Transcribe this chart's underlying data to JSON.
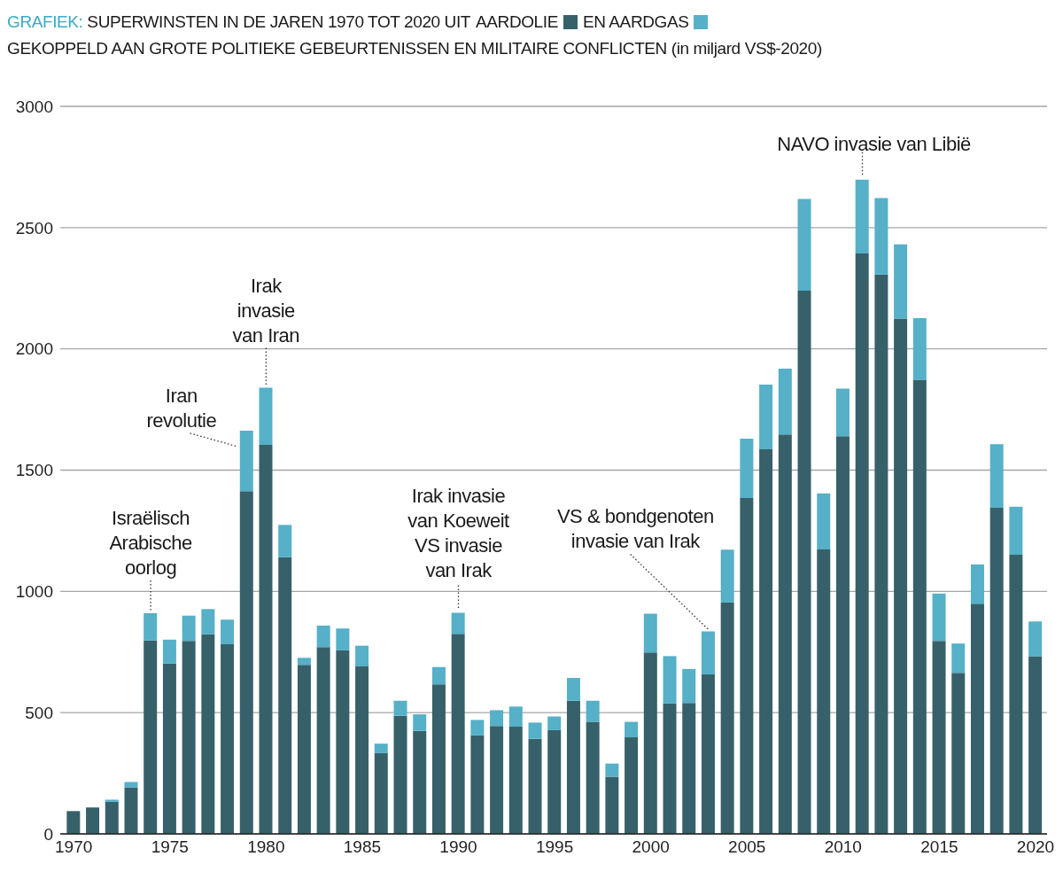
{
  "chart_data": {
    "type": "bar",
    "title": "GRAFIEK: SUPERWINSTEN IN DE JAREN 1970 TOT 2020 UIT",
    "subtitle": "GEKOPPELD AAN GROTE POLITIEKE GEBEURTENISSEN EN MILITAIRE CONFLICTEN (in miljard VS$-2020)",
    "stacked": true,
    "legend": "top",
    "grid": "y",
    "x": [
      1970,
      1971,
      1972,
      1973,
      1974,
      1975,
      1976,
      1977,
      1978,
      1979,
      1980,
      1981,
      1982,
      1983,
      1984,
      1985,
      1986,
      1987,
      1988,
      1989,
      1990,
      1991,
      1992,
      1993,
      1994,
      1995,
      1996,
      1997,
      1998,
      1999,
      2000,
      2001,
      2002,
      2003,
      2004,
      2005,
      2006,
      2007,
      2008,
      2009,
      2010,
      2011,
      2012,
      2013,
      2014,
      2015,
      2016,
      2017,
      2018,
      2019,
      2020
    ],
    "xlim": [
      1969.3,
      2020.6
    ],
    "xticks": [
      1970,
      1975,
      1980,
      1985,
      1990,
      1995,
      2000,
      2005,
      2010,
      2015,
      2020
    ],
    "ylim": [
      0,
      3000
    ],
    "yticks": [
      0,
      500,
      1000,
      1500,
      2000,
      2500,
      3000
    ],
    "series": [
      {
        "name": "AARDOLIE",
        "color": "#37616a",
        "values": [
          94,
          109,
          132,
          192,
          797,
          702,
          796,
          823,
          782,
          1413,
          1604,
          1141,
          697,
          770,
          757,
          692,
          333,
          487,
          425,
          617,
          825,
          406,
          445,
          442,
          392,
          428,
          549,
          462,
          236,
          398,
          748,
          538,
          540,
          658,
          954,
          1385,
          1586,
          1647,
          2240,
          1173,
          1640,
          2393,
          2307,
          2125,
          1873,
          796,
          664,
          949,
          1345,
          1151,
          731
        ]
      },
      {
        "name": "EN AARDGAS",
        "color": "#55b0c8",
        "values": [
          null,
          null,
          9,
          22,
          113,
          99,
          104,
          104,
          101,
          250,
          236,
          133,
          29,
          89,
          90,
          84,
          39,
          62,
          68,
          71,
          87,
          64,
          65,
          83,
          67,
          56,
          94,
          87,
          54,
          64,
          160,
          195,
          140,
          177,
          218,
          245,
          267,
          271,
          378,
          231,
          196,
          305,
          315,
          306,
          254,
          195,
          121,
          162,
          262,
          198,
          145
        ]
      }
    ],
    "annotations": [
      {
        "text": "Israëlisch\nArabische\noorlog",
        "x": 1974,
        "y": 910
      },
      {
        "text": "Iran\nrevolutie",
        "x": 1979,
        "y": 1663
      },
      {
        "text": "Irak\ninvasie\nvan Iran",
        "x": 1980,
        "y": 1840
      },
      {
        "text": "Irak invasie\nvan Koeweit\nVS invasie\nvan Irak",
        "x": 1990,
        "y": 912
      },
      {
        "text": "VS & bondgenoten\ninvasie van Irak",
        "x": 2003,
        "y": 835
      },
      {
        "text": "NAVO invasie van Libië",
        "x": 2011,
        "y": 2698
      }
    ]
  }
}
